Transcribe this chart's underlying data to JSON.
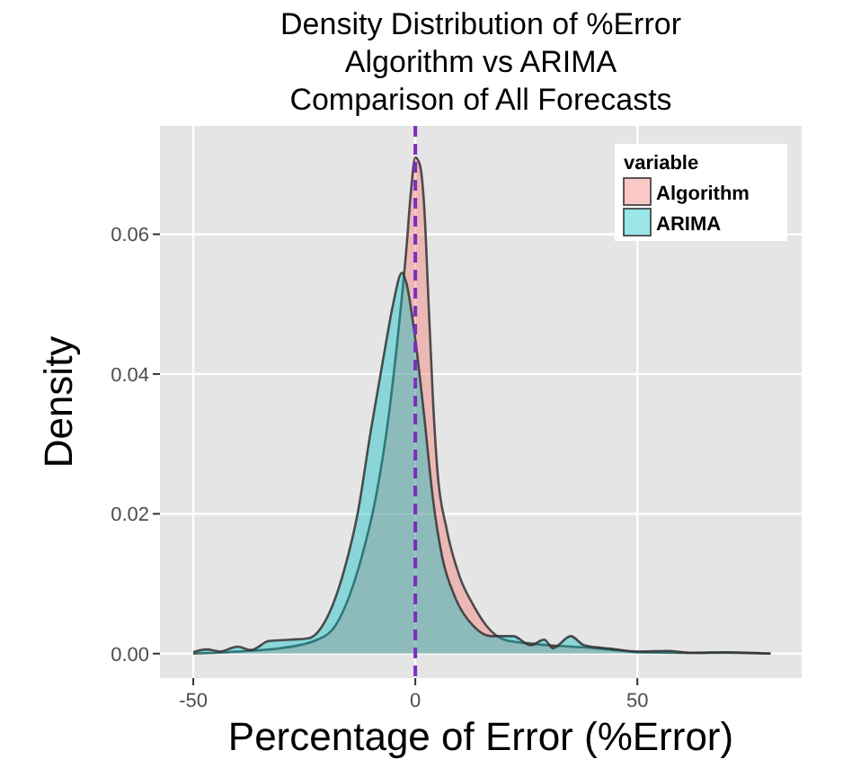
{
  "chart_data": {
    "type": "area",
    "title": "Density Distribution of %Error\nAlgorithm vs ARIMA\nComparison of All Forecasts",
    "xlabel": "Percentage of Error (%Error)",
    "ylabel": "Density",
    "legend_title": "variable",
    "legend": "top right",
    "grid": true,
    "xlim": [
      -57.5,
      87
    ],
    "xticks": [
      -50,
      0,
      50
    ],
    "ylim": [
      -0.0035,
      0.0755
    ],
    "yticks": [
      {
        "value": 0,
        "label": "0.00"
      },
      {
        "value": 0.02,
        "label": "0.02"
      },
      {
        "value": 0.04,
        "label": "0.04"
      },
      {
        "value": 0.06,
        "label": "0.06"
      }
    ],
    "ref_lines": [
      {
        "axis": "x",
        "value": 0,
        "color": "#7b2fbe",
        "line_style": "dashed"
      }
    ],
    "series": [
      {
        "name": "Algorithm",
        "color": "#f8766d",
        "x": [
          -50,
          -40,
          -30,
          -22,
          -18,
          -15,
          -12,
          -9,
          -6,
          -4,
          -2,
          -1,
          0,
          1,
          2,
          3,
          4,
          5,
          7,
          10,
          13,
          16,
          20,
          25,
          30,
          35,
          40,
          45,
          50,
          60,
          70,
          80
        ],
        "values": [
          0,
          0.0003,
          0.0008,
          0.002,
          0.004,
          0.008,
          0.014,
          0.022,
          0.034,
          0.045,
          0.058,
          0.066,
          0.071,
          0.07,
          0.064,
          0.05,
          0.036,
          0.026,
          0.018,
          0.011,
          0.007,
          0.004,
          0.002,
          0.0015,
          0.0012,
          0.001,
          0.0008,
          0.0005,
          0.0002,
          0.0001,
          0.0001,
          0
        ]
      },
      {
        "name": "ARIMA",
        "color": "#00bfc4",
        "x": [
          -50,
          -47,
          -44,
          -40,
          -37,
          -33,
          -28,
          -24,
          -20,
          -16,
          -13,
          -10,
          -7,
          -5,
          -3,
          -2,
          0,
          2,
          4,
          6,
          9,
          13,
          17,
          22,
          26,
          29,
          31,
          35,
          38,
          44,
          50,
          57,
          62,
          70,
          80
        ],
        "values": [
          0.0002,
          0.0006,
          0.0003,
          0.001,
          0.0005,
          0.0018,
          0.002,
          0.0022,
          0.005,
          0.012,
          0.02,
          0.032,
          0.043,
          0.05,
          0.0545,
          0.053,
          0.045,
          0.034,
          0.022,
          0.014,
          0.008,
          0.004,
          0.0025,
          0.0025,
          0.0012,
          0.002,
          0.0008,
          0.0025,
          0.0012,
          0.0007,
          0.0003,
          0.0004,
          0.0001,
          0.0002,
          0
        ]
      }
    ]
  }
}
